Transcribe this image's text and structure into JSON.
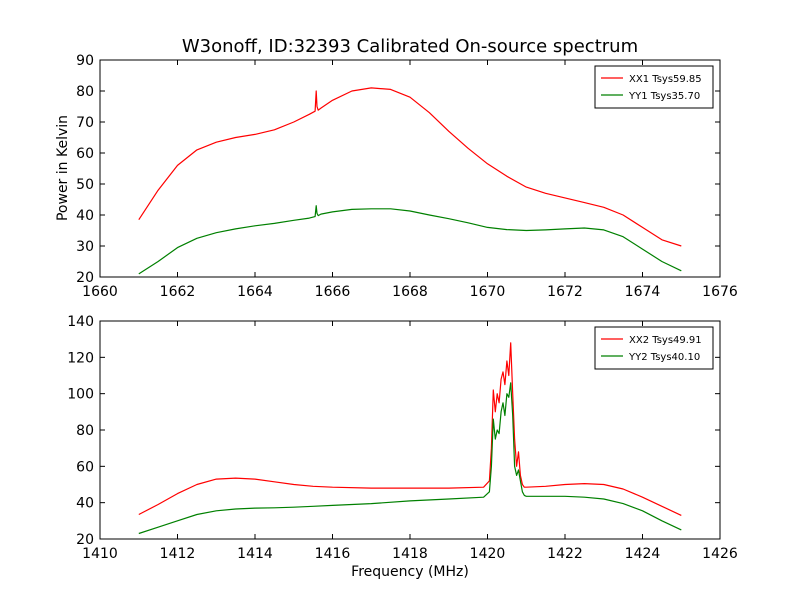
{
  "chart_data": [
    {
      "type": "line",
      "title": "W3onoff, ID:32393 Calibrated On-source spectrum",
      "xlabel": "",
      "ylabel": "Power in Kelvin",
      "xlim": [
        1660,
        1676
      ],
      "ylim": [
        20,
        90
      ],
      "xticks": [
        "1660",
        "1662",
        "1664",
        "1666",
        "1668",
        "1670",
        "1672",
        "1674",
        "1676"
      ],
      "yticks": [
        "20",
        "30",
        "40",
        "50",
        "60",
        "70",
        "80",
        "90"
      ],
      "legend_position": "top-right",
      "grid": false,
      "series": [
        {
          "name": "XX1 Tsys59.85",
          "color": "#ff0000",
          "x": [
            1661.0,
            1661.5,
            1662.0,
            1662.5,
            1663.0,
            1663.5,
            1664.0,
            1664.5,
            1665.0,
            1665.4,
            1665.55,
            1665.58,
            1665.6,
            1665.63,
            1665.7,
            1666.0,
            1666.5,
            1667.0,
            1667.5,
            1668.0,
            1668.5,
            1669.0,
            1669.5,
            1670.0,
            1670.5,
            1671.0,
            1671.5,
            1672.0,
            1672.5,
            1673.0,
            1673.5,
            1674.0,
            1674.5,
            1675.0
          ],
          "y": [
            38.5,
            48.0,
            56.0,
            61.0,
            63.5,
            65.0,
            66.0,
            67.5,
            70.0,
            72.5,
            73.5,
            80.0,
            75.0,
            73.8,
            74.5,
            77.0,
            80.0,
            81.0,
            80.5,
            78.0,
            73.0,
            67.0,
            61.5,
            56.5,
            52.5,
            49.0,
            47.0,
            45.5,
            44.0,
            42.5,
            40.0,
            36.0,
            32.0,
            30.0
          ]
        },
        {
          "name": "YY1 Tsys35.70",
          "color": "#008000",
          "x": [
            1661.0,
            1661.5,
            1662.0,
            1662.5,
            1663.0,
            1663.5,
            1664.0,
            1664.5,
            1665.0,
            1665.4,
            1665.55,
            1665.58,
            1665.6,
            1665.63,
            1665.7,
            1666.0,
            1666.5,
            1667.0,
            1667.5,
            1668.0,
            1668.5,
            1669.0,
            1669.5,
            1670.0,
            1670.5,
            1671.0,
            1671.5,
            1672.0,
            1672.5,
            1673.0,
            1673.5,
            1674.0,
            1674.5,
            1675.0
          ],
          "y": [
            21.0,
            25.0,
            29.5,
            32.5,
            34.3,
            35.5,
            36.5,
            37.3,
            38.3,
            39.0,
            39.5,
            43.0,
            40.5,
            39.8,
            40.3,
            41.0,
            41.8,
            42.0,
            42.0,
            41.3,
            40.0,
            38.8,
            37.5,
            36.0,
            35.3,
            35.0,
            35.2,
            35.5,
            35.8,
            35.2,
            33.0,
            29.0,
            25.0,
            22.0
          ]
        }
      ]
    },
    {
      "type": "line",
      "title": "",
      "xlabel": "Frequency (MHz)",
      "ylabel": "",
      "xlim": [
        1410,
        1426
      ],
      "ylim": [
        20,
        140
      ],
      "xticks": [
        "1410",
        "1412",
        "1414",
        "1416",
        "1418",
        "1420",
        "1422",
        "1424",
        "1426"
      ],
      "yticks": [
        "20",
        "40",
        "60",
        "80",
        "100",
        "120",
        "140"
      ],
      "legend_position": "top-right",
      "grid": false,
      "series": [
        {
          "name": "XX2 Tsys49.91",
          "color": "#ff0000",
          "x": [
            1411.0,
            1411.5,
            1412.0,
            1412.5,
            1413.0,
            1413.5,
            1414.0,
            1414.5,
            1415.0,
            1415.5,
            1416.0,
            1417.0,
            1418.0,
            1419.0,
            1419.9,
            1420.05,
            1420.1,
            1420.15,
            1420.2,
            1420.25,
            1420.3,
            1420.35,
            1420.4,
            1420.45,
            1420.5,
            1420.55,
            1420.6,
            1420.65,
            1420.7,
            1420.75,
            1420.8,
            1420.85,
            1420.9,
            1420.95,
            1421.0,
            1421.5,
            1422.0,
            1422.5,
            1423.0,
            1423.5,
            1424.0,
            1424.5,
            1425.0
          ],
          "y": [
            33.5,
            39.0,
            45.0,
            50.0,
            53.0,
            53.5,
            53.0,
            51.5,
            50.0,
            49.0,
            48.5,
            48.0,
            48.0,
            48.0,
            48.5,
            52.0,
            70.0,
            102.0,
            90.0,
            100.0,
            95.0,
            108.0,
            112.0,
            105.0,
            118.0,
            110.0,
            128.0,
            100.0,
            75.0,
            60.0,
            68.0,
            55.0,
            50.0,
            48.5,
            48.5,
            49.0,
            50.0,
            50.5,
            50.0,
            47.5,
            43.0,
            38.0,
            33.0
          ]
        },
        {
          "name": "YY2 Tsys40.10",
          "color": "#008000",
          "x": [
            1411.0,
            1411.5,
            1412.0,
            1412.5,
            1413.0,
            1413.5,
            1414.0,
            1414.5,
            1415.0,
            1415.5,
            1416.0,
            1417.0,
            1418.0,
            1419.0,
            1419.9,
            1420.05,
            1420.1,
            1420.15,
            1420.2,
            1420.25,
            1420.3,
            1420.35,
            1420.4,
            1420.45,
            1420.5,
            1420.55,
            1420.6,
            1420.65,
            1420.7,
            1420.75,
            1420.8,
            1420.85,
            1420.9,
            1420.95,
            1421.0,
            1421.5,
            1422.0,
            1422.5,
            1423.0,
            1423.5,
            1424.0,
            1424.5,
            1425.0
          ],
          "y": [
            23.0,
            26.5,
            30.0,
            33.5,
            35.5,
            36.5,
            37.0,
            37.2,
            37.5,
            38.0,
            38.5,
            39.5,
            41.0,
            42.0,
            43.0,
            46.0,
            60.0,
            86.0,
            75.0,
            80.0,
            78.0,
            90.0,
            95.0,
            88.0,
            100.0,
            98.0,
            106.0,
            88.0,
            60.0,
            55.0,
            58.0,
            52.0,
            46.0,
            44.0,
            43.5,
            43.5,
            43.5,
            43.0,
            42.0,
            39.5,
            35.5,
            30.0,
            25.0
          ]
        }
      ]
    }
  ]
}
